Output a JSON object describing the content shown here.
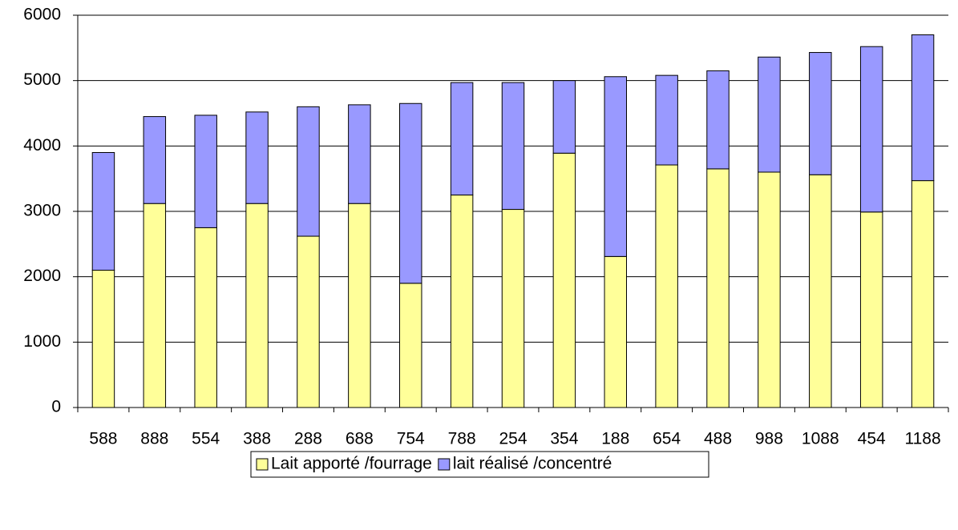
{
  "chart_data": {
    "type": "stacked_bar",
    "categories": [
      "588",
      "888",
      "554",
      "388",
      "288",
      "688",
      "754",
      "788",
      "254",
      "354",
      "188",
      "654",
      "488",
      "988",
      "1088",
      "454",
      "1188"
    ],
    "series": [
      {
        "name": "Lait apporté /fourrage",
        "color": "#ffff99",
        "values": [
          2100,
          3120,
          2750,
          3120,
          2620,
          3120,
          1900,
          3250,
          3030,
          3890,
          2310,
          3710,
          3650,
          3600,
          3560,
          2990,
          3470
        ]
      },
      {
        "name": "lait réalisé /concentré",
        "color": "#9999ff",
        "values": [
          1800,
          1330,
          1720,
          1400,
          1980,
          1510,
          2750,
          1720,
          1940,
          1110,
          2750,
          1370,
          1500,
          1760,
          1870,
          2530,
          2230
        ]
      }
    ],
    "ylim": [
      0,
      6000
    ],
    "yticks": [
      0,
      1000,
      2000,
      3000,
      4000,
      5000,
      6000
    ],
    "grid": true,
    "legend": "bottom"
  }
}
